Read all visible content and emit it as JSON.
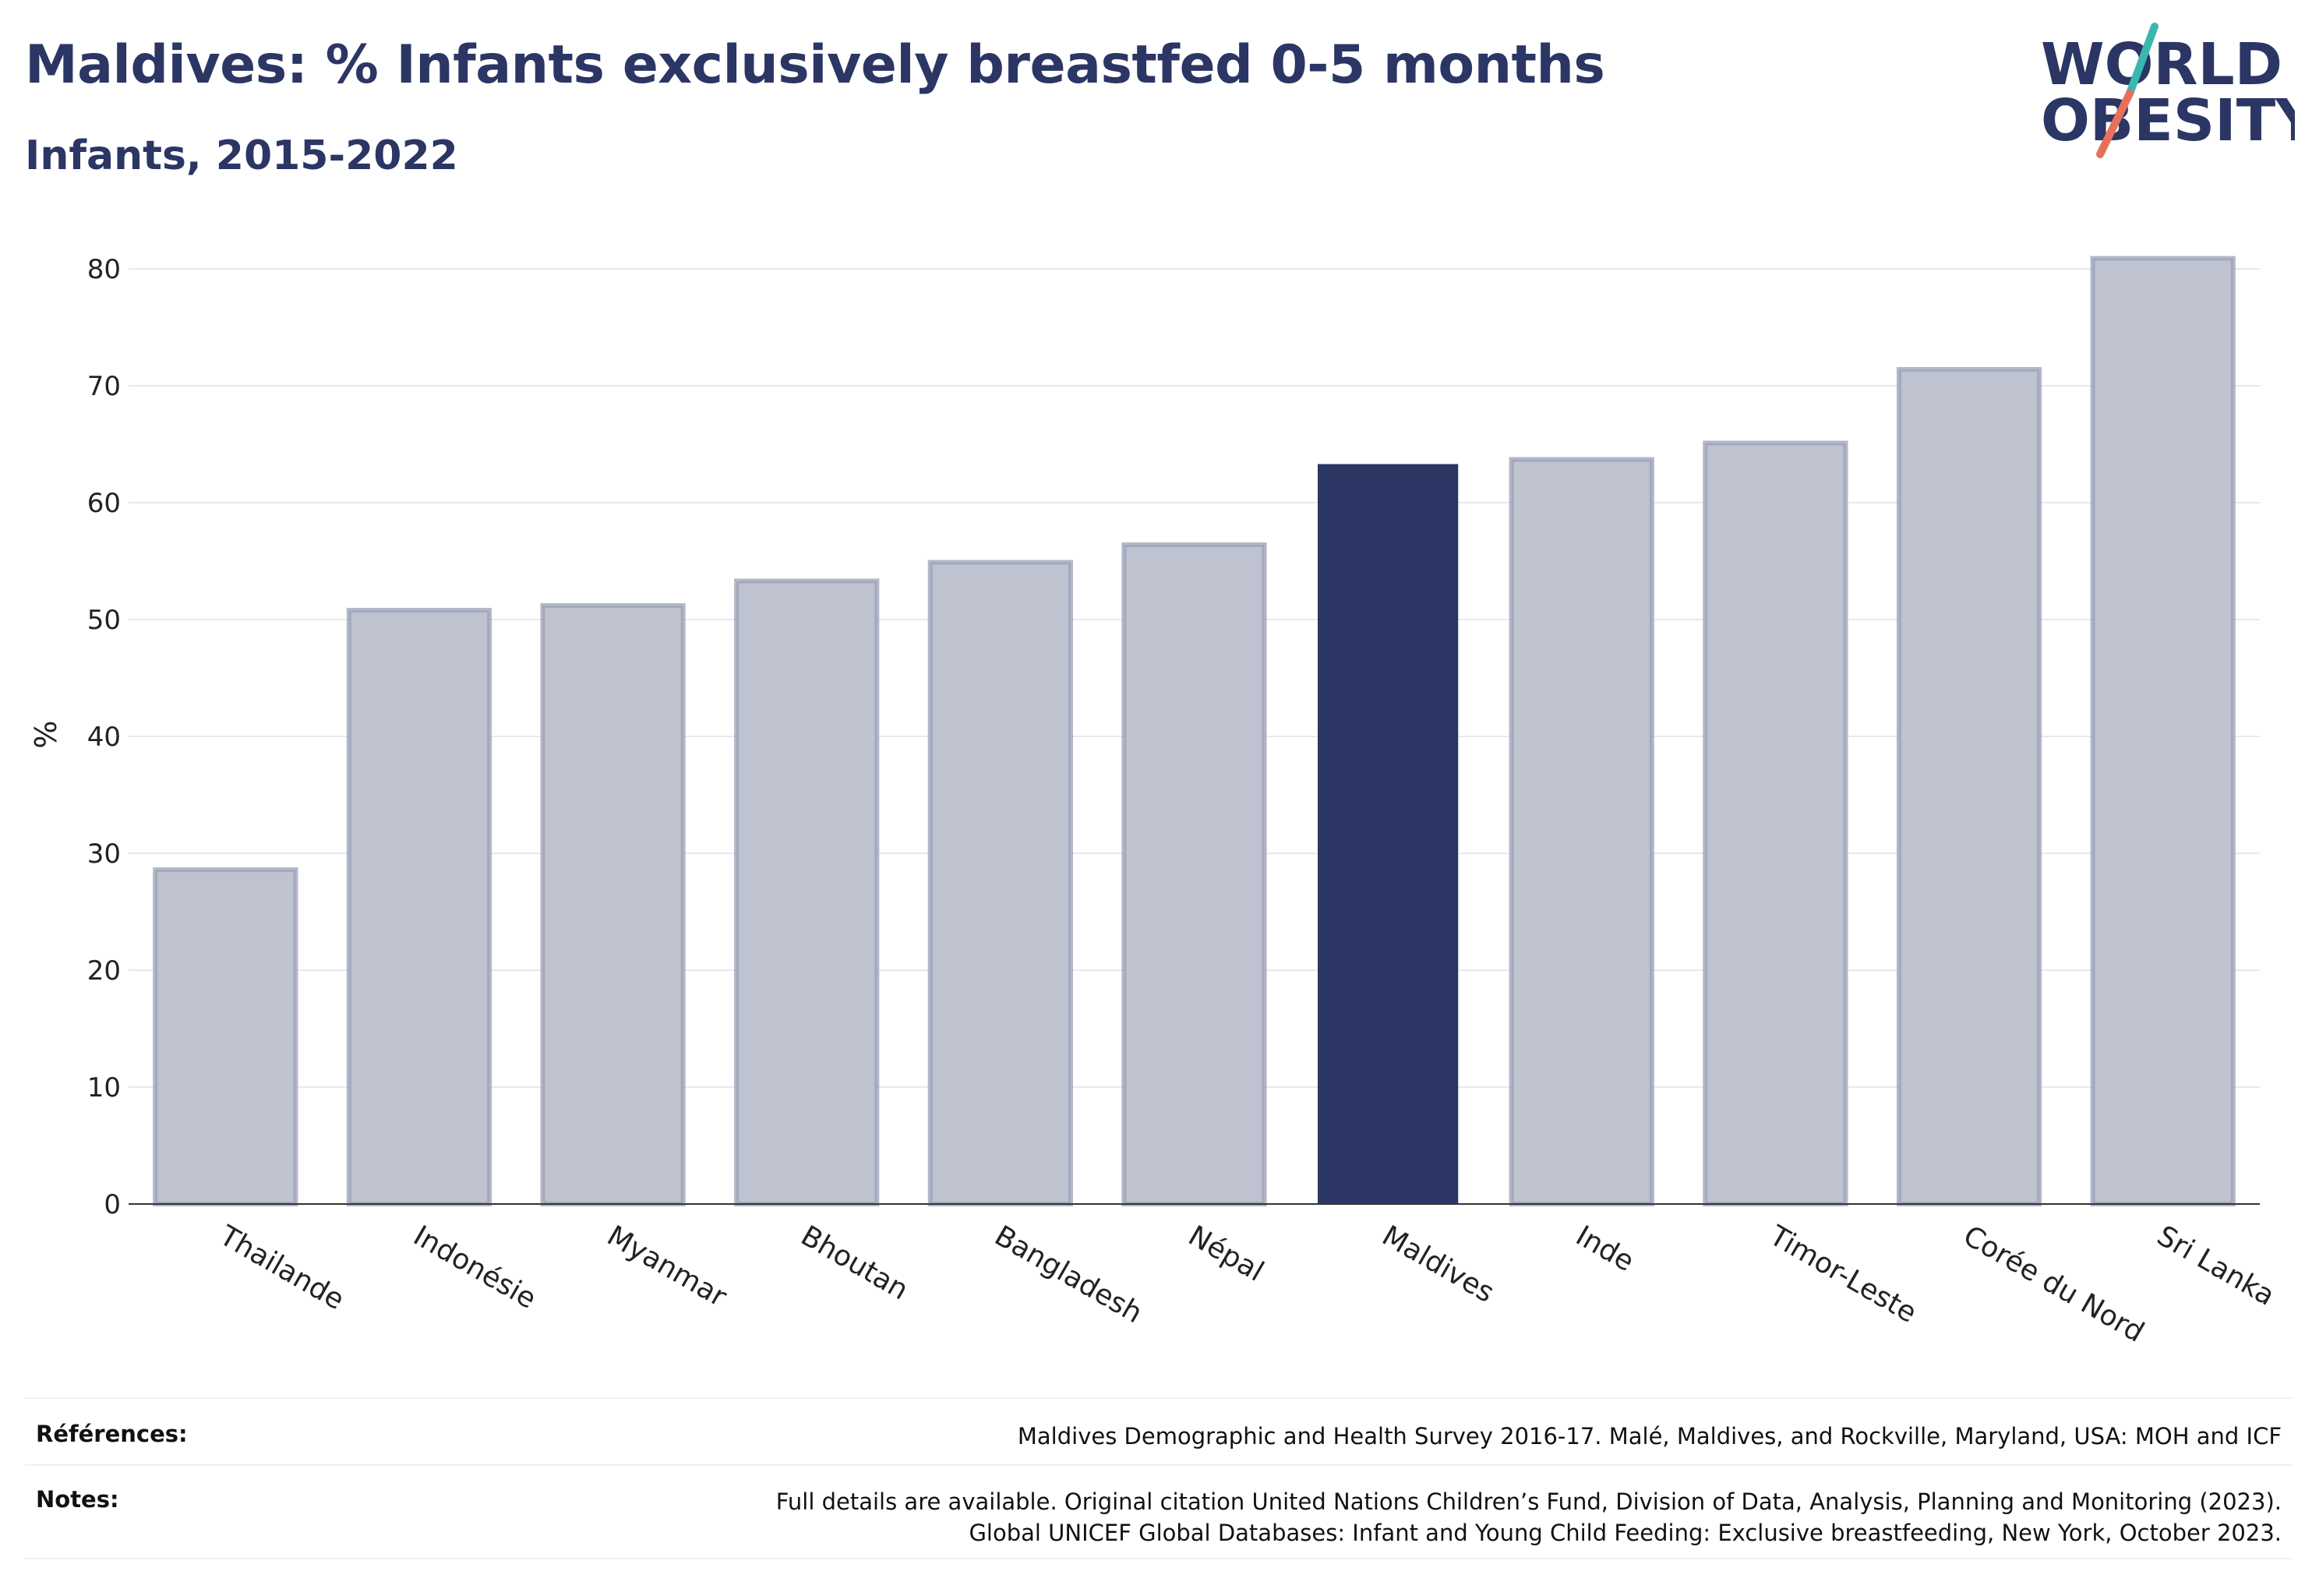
{
  "title": "Maldives: % Infants exclusively breastfed 0-5 months",
  "subtitle": "Infants, 2015-2022",
  "logo": {
    "line1": "WORLD",
    "line2": "OBESITY"
  },
  "colors": {
    "highlight": "#2b3664",
    "bar_fill": "#bfc2cf",
    "bar_stroke": "#9aa0b7",
    "logo_teal": "#3ab8b0",
    "logo_coral": "#e8705a"
  },
  "chart_data": {
    "type": "bar",
    "categories": [
      "Thailande",
      "Indonésie",
      "Myanmar",
      "Bhoutan",
      "Bangladesh",
      "Népal",
      "Maldives",
      "Inde",
      "Timor-Leste",
      "Corée du Nord",
      "Sri Lanka"
    ],
    "values": [
      28.6,
      50.8,
      51.2,
      53.3,
      54.9,
      56.4,
      63.3,
      63.7,
      65.1,
      71.4,
      80.9
    ],
    "highlight": "Maldives",
    "xlabel": "",
    "ylabel": "%",
    "ylim": [
      0,
      83
    ],
    "yticks": [
      0,
      10,
      20,
      30,
      40,
      50,
      60,
      70,
      80
    ],
    "grid": true
  },
  "footer": {
    "references_label": "Références:",
    "references_text": "Maldives Demographic and Health Survey 2016-17. Malé, Maldives, and Rockville, Maryland, USA: MOH and ICF",
    "notes_label": "Notes:",
    "notes_line1": "Full details are available. Original citation United Nations Children’s Fund, Division of Data, Analysis, Planning and Monitoring (2023).",
    "notes_line2": "Global UNICEF Global Databases: Infant and Young Child Feeding: Exclusive breastfeeding, New York, October 2023."
  }
}
